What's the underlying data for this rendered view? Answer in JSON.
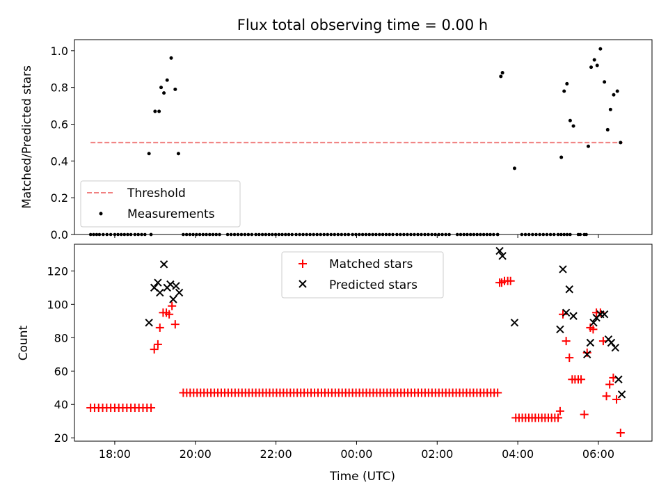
{
  "figure": {
    "title": "Flux total observing time = 0.00 h"
  },
  "chart_data": [
    {
      "type": "scatter",
      "ylabel": "Matched/Predicted stars",
      "xlabel": "",
      "xlim": [
        17.0,
        7.33
      ],
      "ylim": [
        0.0,
        1.06
      ],
      "yticks": [
        0.0,
        0.2,
        0.4,
        0.6,
        0.8,
        1.0
      ],
      "ytick_labels": [
        "0.0",
        "0.2",
        "0.4",
        "0.6",
        "0.8",
        "1.0"
      ],
      "xticks": [
        18,
        20,
        22,
        0,
        2,
        4,
        6
      ],
      "xtick_labels": [],
      "legend_position": "bottom-left",
      "threshold": {
        "name": "Threshold",
        "value": 0.5,
        "x_start": 17.4,
        "x_end": 6.6,
        "color": "#f08080",
        "style": "dashed"
      },
      "series": [
        {
          "name": "Measurements",
          "color": "#000000",
          "marker": "dot",
          "x": [
            18.85,
            19.0,
            19.1,
            19.15,
            19.22,
            19.3,
            19.4,
            19.5,
            19.58,
            3.58,
            3.62,
            3.92,
            5.08,
            5.15,
            5.22,
            5.3,
            5.38,
            5.75,
            5.82,
            5.9,
            5.97,
            6.05,
            6.15,
            6.23,
            6.3,
            6.38,
            6.47,
            6.55
          ],
          "y": [
            0.44,
            0.67,
            0.67,
            0.8,
            0.77,
            0.84,
            0.96,
            0.79,
            0.44,
            0.86,
            0.88,
            0.36,
            0.42,
            0.78,
            0.82,
            0.62,
            0.59,
            0.48,
            0.91,
            0.95,
            0.92,
            1.01,
            0.83,
            0.57,
            0.68,
            0.76,
            0.78,
            0.5
          ]
        }
      ],
      "zero_points": [
        [
          17.4,
          17.55
        ],
        [
          17.62,
          17.9
        ],
        [
          18.0,
          18.4
        ],
        [
          18.5,
          18.75
        ],
        [
          18.9,
          18.9
        ],
        [
          19.7,
          20.6
        ],
        [
          20.8,
          21.4
        ],
        [
          21.5,
          22.4
        ],
        [
          22.5,
          23.8
        ],
        [
          23.9,
          24.9
        ],
        [
          25.0,
          26.3
        ],
        [
          26.5,
          27.4
        ],
        [
          27.5,
          27.5
        ],
        [
          28.1,
          28.9
        ],
        [
          29.0,
          29.3
        ],
        [
          29.5,
          29.55
        ],
        [
          29.65,
          29.7
        ]
      ]
    },
    {
      "type": "scatter",
      "ylabel": "Count",
      "xlabel": "Time (UTC)",
      "xlim": [
        17.0,
        7.33
      ],
      "ylim": [
        18,
        136
      ],
      "yticks": [
        20,
        40,
        60,
        80,
        100,
        120
      ],
      "ytick_labels": [
        "20",
        "40",
        "60",
        "80",
        "100",
        "120"
      ],
      "xticks": [
        18,
        20,
        22,
        0,
        2,
        4,
        6
      ],
      "xtick_labels": [
        "18:00",
        "20:00",
        "22:00",
        "00:00",
        "02:00",
        "04:00",
        "06:00"
      ],
      "legend_position": "upper-center",
      "series": [
        {
          "name": "Matched stars",
          "color": "#ff0000",
          "marker": "plus",
          "x": [
            18.98,
            19.07,
            19.12,
            19.2,
            19.28,
            19.35,
            19.42,
            19.5,
            3.55,
            3.6,
            3.67,
            3.75,
            3.82,
            5.05,
            5.12,
            5.2,
            5.28,
            5.35,
            5.42,
            5.5,
            5.57,
            5.65,
            5.72,
            5.8,
            5.87,
            5.95,
            6.05,
            6.12,
            6.2,
            6.28,
            6.37,
            6.45,
            6.55
          ],
          "y": [
            73,
            76,
            86,
            95,
            95,
            94,
            99,
            88,
            113,
            113,
            114,
            114,
            114,
            36,
            94,
            78,
            68,
            55,
            55,
            55,
            55,
            34,
            71,
            86,
            85,
            95,
            95,
            78,
            45,
            52,
            56,
            43,
            23
          ]
        },
        {
          "name": "Predicted stars",
          "color": "#000000",
          "marker": "x",
          "x": [
            18.85,
            18.98,
            19.07,
            19.12,
            19.22,
            19.3,
            19.38,
            19.45,
            19.52,
            19.6,
            3.55,
            3.62,
            3.92,
            5.05,
            5.12,
            5.2,
            5.28,
            5.38,
            5.72,
            5.8,
            5.88,
            5.95,
            6.05,
            6.15,
            6.25,
            6.32,
            6.42,
            6.5,
            6.58
          ],
          "y": [
            89,
            110,
            113,
            107,
            124,
            110,
            112,
            103,
            111,
            107,
            132,
            129,
            89,
            85,
            121,
            95,
            109,
            93,
            70,
            77,
            89,
            92,
            94,
            94,
            79,
            77,
            74,
            55,
            46
          ]
        }
      ],
      "flat_runs": [
        {
          "y": 38,
          "x_start": 17.4,
          "x_end": 18.9,
          "count": 16
        },
        {
          "y": 47,
          "x_start": 19.7,
          "x_end": 27.5,
          "count": 92
        },
        {
          "y": 32,
          "x_start": 27.95,
          "x_end": 29.0,
          "count": 14
        }
      ]
    }
  ]
}
